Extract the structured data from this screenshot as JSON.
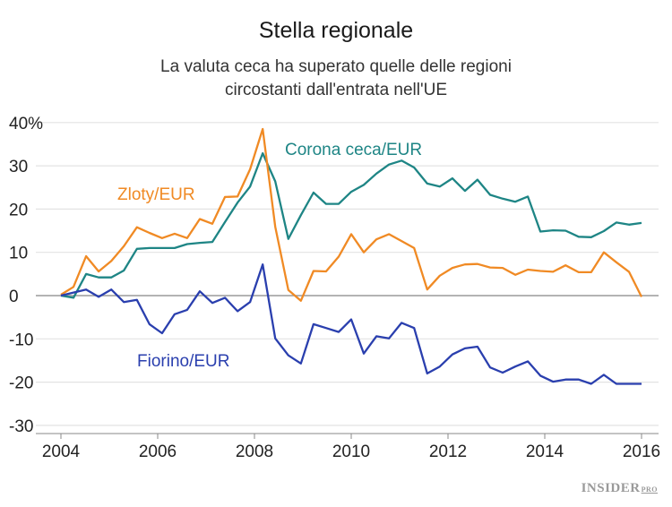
{
  "chart_data": {
    "type": "line",
    "title": "Stella regionale",
    "subtitle_lines": [
      "La valuta ceca ha superato quelle delle regioni",
      "circostanti dall'entrata nell'UE"
    ],
    "xlabel": "",
    "ylabel": "",
    "xlim": [
      2004,
      2016
    ],
    "ylim": [
      -30,
      40
    ],
    "x_ticks": [
      "2004",
      "2006",
      "2008",
      "2010",
      "2012",
      "2014",
      "2016"
    ],
    "y_ticks": [
      "40%",
      "30",
      "20",
      "10",
      "0",
      "-10",
      "-20",
      "-30"
    ],
    "grid": true,
    "x": [
      2004.0,
      2004.26,
      2004.52,
      2004.78,
      2005.04,
      2005.3,
      2005.57,
      2005.83,
      2006.09,
      2006.35,
      2006.61,
      2006.87,
      2007.13,
      2007.39,
      2007.65,
      2007.91,
      2008.17,
      2008.43,
      2008.7,
      2008.96,
      2009.22,
      2009.48,
      2009.74,
      2010.0,
      2010.26,
      2010.52,
      2010.78,
      2011.04,
      2011.3,
      2011.57,
      2011.83,
      2012.09,
      2012.35,
      2012.61,
      2012.87,
      2013.13,
      2013.39,
      2013.65,
      2013.91,
      2014.17,
      2014.43,
      2014.7,
      2014.96,
      2015.22,
      2015.48,
      2015.74,
      2016.0
    ],
    "series": [
      {
        "name": "Corona ceca/EUR",
        "color": "#1e8585",
        "values": [
          0,
          -0.5,
          5,
          4.2,
          4.2,
          5.8,
          10.8,
          11,
          11,
          11,
          11.9,
          12.2,
          12.4,
          17,
          21.5,
          25.2,
          32.9,
          26.4,
          13.1,
          18.6,
          23.8,
          21.2,
          21.2,
          24,
          25.6,
          28.2,
          30.3,
          31.2,
          29.6,
          25.9,
          25.2,
          27.1,
          24.2,
          26.8,
          23.3,
          22.4,
          21.7,
          22.9,
          14.8,
          15.1,
          15,
          13.6,
          13.5,
          14.9,
          16.9,
          16.4,
          16.8
        ]
      },
      {
        "name": "Zloty/EUR",
        "color": "#f08a24",
        "values": [
          0.2,
          2,
          9.1,
          5.6,
          8,
          11.4,
          15.8,
          14.5,
          13.3,
          14.3,
          13.3,
          17.7,
          16.6,
          22.8,
          22.9,
          29.2,
          38.5,
          15.9,
          1.3,
          -1.2,
          5.7,
          5.6,
          9,
          14.2,
          10,
          13,
          14.2,
          12.6,
          11,
          1.4,
          4.6,
          6.4,
          7.2,
          7.3,
          6.5,
          6.4,
          4.8,
          6,
          5.7,
          5.5,
          7,
          5.4,
          5.4,
          10,
          7.7,
          5.5,
          -0.3
        ]
      },
      {
        "name": "Fiorino/EUR",
        "color": "#2a3fae",
        "values": [
          0,
          0.7,
          1.4,
          -0.3,
          1.4,
          -1.5,
          -1,
          -6.6,
          -8.7,
          -4.3,
          -3.3,
          1,
          -1.7,
          -0.5,
          -3.6,
          -1.5,
          7.2,
          -9.9,
          -13.8,
          -15.7,
          -6.6,
          -7.5,
          -8.4,
          -5.5,
          -13.4,
          -9.4,
          -9.9,
          -6.3,
          -7.5,
          -18,
          -16.4,
          -13.6,
          -12.2,
          -11.8,
          -16.6,
          -17.8,
          -16.4,
          -15.2,
          -18.5,
          -19.9,
          -19.4,
          -19.4,
          -20.4,
          -18.3,
          -20.4,
          -20.4,
          -20.4
        ]
      }
    ]
  },
  "logo": {
    "text": "INSIDER",
    "suffix": "PRO"
  }
}
